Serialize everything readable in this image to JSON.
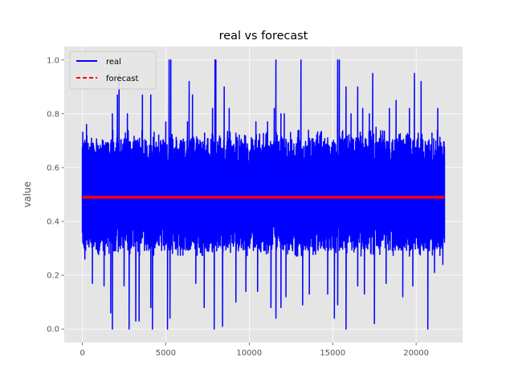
{
  "chart_data": {
    "type": "line",
    "title": "real vs forecast",
    "xlabel": "",
    "ylabel": "value",
    "xlim": [
      -1085,
      22785
    ],
    "ylim": [
      -0.05,
      1.05
    ],
    "x_ticks": [
      0,
      5000,
      10000,
      15000,
      20000
    ],
    "x_tick_labels": [
      "0",
      "5000",
      "10000",
      "15000",
      "20000"
    ],
    "y_ticks": [
      0.0,
      0.2,
      0.4,
      0.6,
      0.8,
      1.0
    ],
    "y_tick_labels": [
      "0.0",
      "0.2",
      "0.4",
      "0.6",
      "0.8",
      "1.0"
    ],
    "grid": true,
    "style": "ggplot",
    "legend_position": "upper-left",
    "series": [
      {
        "name": "real",
        "color": "#0000ff",
        "line_style": "solid",
        "n_points": 21700,
        "x_range": [
          0,
          21700
        ],
        "typical_band": [
          0.33,
          0.67
        ],
        "typical_mean": 0.49,
        "min": 0.0,
        "max": 1.0,
        "spikes_up": [
          [
            250,
            0.76
          ],
          [
            1800,
            0.8
          ],
          [
            2100,
            0.87
          ],
          [
            2200,
            0.95
          ],
          [
            2700,
            0.8
          ],
          [
            3600,
            0.87
          ],
          [
            4100,
            0.87
          ],
          [
            5000,
            0.77
          ],
          [
            5200,
            1.0
          ],
          [
            5300,
            1.0
          ],
          [
            6300,
            0.77
          ],
          [
            6400,
            0.92
          ],
          [
            6600,
            0.87
          ],
          [
            7800,
            0.82
          ],
          [
            7950,
            1.0
          ],
          [
            8000,
            1.0
          ],
          [
            8500,
            0.9
          ],
          [
            8800,
            0.82
          ],
          [
            10400,
            0.77
          ],
          [
            11100,
            0.77
          ],
          [
            11500,
            0.82
          ],
          [
            11600,
            1.0
          ],
          [
            11900,
            0.8
          ],
          [
            12100,
            0.8
          ],
          [
            13100,
            1.0
          ],
          [
            15300,
            1.0
          ],
          [
            15400,
            1.0
          ],
          [
            15800,
            0.9
          ],
          [
            16100,
            0.8
          ],
          [
            16500,
            0.9
          ],
          [
            16800,
            0.82
          ],
          [
            17200,
            0.8
          ],
          [
            17400,
            0.95
          ],
          [
            17600,
            0.75
          ],
          [
            18400,
            0.82
          ],
          [
            18800,
            0.85
          ],
          [
            19600,
            0.82
          ],
          [
            19900,
            0.95
          ],
          [
            20300,
            0.92
          ],
          [
            21300,
            0.82
          ]
        ],
        "spikes_down": [
          [
            150,
            0.26
          ],
          [
            600,
            0.17
          ],
          [
            1300,
            0.16
          ],
          [
            1700,
            0.06
          ],
          [
            1800,
            0.0
          ],
          [
            2500,
            0.16
          ],
          [
            2800,
            0.0
          ],
          [
            3200,
            0.03
          ],
          [
            3400,
            0.03
          ],
          [
            4100,
            0.08
          ],
          [
            4200,
            0.0
          ],
          [
            5100,
            0.0
          ],
          [
            5250,
            0.04
          ],
          [
            6800,
            0.17
          ],
          [
            7300,
            0.08
          ],
          [
            7900,
            0.0
          ],
          [
            8400,
            0.01
          ],
          [
            9200,
            0.1
          ],
          [
            9800,
            0.14
          ],
          [
            10500,
            0.14
          ],
          [
            11300,
            0.08
          ],
          [
            11600,
            0.04
          ],
          [
            11900,
            0.08
          ],
          [
            12200,
            0.12
          ],
          [
            13200,
            0.09
          ],
          [
            13600,
            0.13
          ],
          [
            14700,
            0.13
          ],
          [
            15100,
            0.04
          ],
          [
            15300,
            0.09
          ],
          [
            15800,
            0.0
          ],
          [
            16500,
            0.16
          ],
          [
            16900,
            0.13
          ],
          [
            17500,
            0.02
          ],
          [
            18200,
            0.17
          ],
          [
            19200,
            0.12
          ],
          [
            19800,
            0.16
          ],
          [
            20700,
            0.0
          ],
          [
            21100,
            0.21
          ],
          [
            21600,
            0.24
          ]
        ]
      },
      {
        "name": "forecast",
        "color": "#ff0000",
        "line_style": "dashed",
        "x": [
          0,
          21700
        ],
        "y": [
          0.49,
          0.49
        ]
      }
    ],
    "colors": {
      "plot_background": "#e5e5e5",
      "grid": "#ffffff",
      "tick_text": "#555555"
    }
  }
}
